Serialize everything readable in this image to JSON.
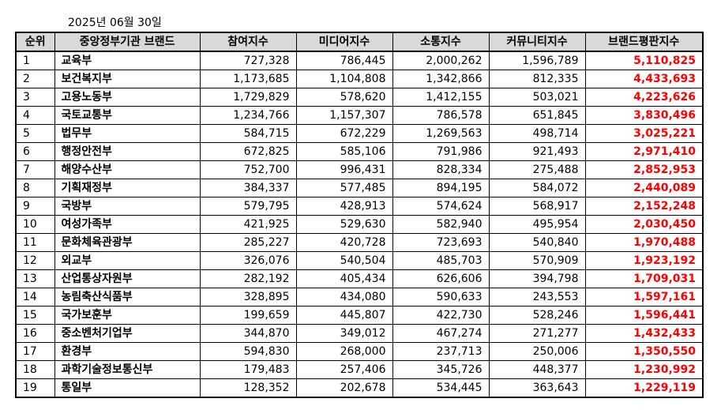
{
  "date": "2025년 06월 30일",
  "headers": [
    "순위",
    "중앙정부기관 브랜드",
    "참여지수",
    "미디어지수",
    "소통지수",
    "커뮤니티지수",
    "브랜드평판지수"
  ],
  "rows": [
    [
      "1",
      "교육부",
      "727,328",
      "786,445",
      "2,000,262",
      "1,596,789",
      "5,110,825"
    ],
    [
      "2",
      "보건복지부",
      "1,173,685",
      "1,104,808",
      "1,342,866",
      "812,335",
      "4,433,693"
    ],
    [
      "3",
      "고용노동부",
      "1,729,829",
      "578,620",
      "1,412,155",
      "503,021",
      "4,223,626"
    ],
    [
      "4",
      "국토교통부",
      "1,234,766",
      "1,157,307",
      "786,578",
      "651,845",
      "3,830,496"
    ],
    [
      "5",
      "법무부",
      "584,715",
      "672,229",
      "1,269,563",
      "498,714",
      "3,025,221"
    ],
    [
      "6",
      "행정안전부",
      "672,825",
      "585,106",
      "791,986",
      "921,493",
      "2,971,410"
    ],
    [
      "7",
      "해양수산부",
      "752,700",
      "996,431",
      "828,334",
      "275,488",
      "2,852,953"
    ],
    [
      "8",
      "기획재정부",
      "384,337",
      "577,485",
      "894,195",
      "584,072",
      "2,440,089"
    ],
    [
      "9",
      "국방부",
      "579,795",
      "428,913",
      "574,624",
      "568,917",
      "2,152,248"
    ],
    [
      "10",
      "여성가족부",
      "421,925",
      "529,630",
      "582,940",
      "495,954",
      "2,030,450"
    ],
    [
      "11",
      "문화체육관광부",
      "285,227",
      "420,728",
      "723,693",
      "540,840",
      "1,970,488"
    ],
    [
      "12",
      "외교부",
      "326,076",
      "540,504",
      "485,703",
      "570,909",
      "1,923,192"
    ],
    [
      "13",
      "산업통상자원부",
      "282,192",
      "405,434",
      "626,606",
      "394,798",
      "1,709,031"
    ],
    [
      "14",
      "농림축산식품부",
      "328,895",
      "434,080",
      "590,633",
      "243,553",
      "1,597,161"
    ],
    [
      "15",
      "국가보훈부",
      "199,659",
      "445,807",
      "422,730",
      "528,246",
      "1,596,441"
    ],
    [
      "16",
      "중소벤처기업부",
      "344,870",
      "349,012",
      "467,274",
      "271,277",
      "1,432,433"
    ],
    [
      "17",
      "환경부",
      "594,830",
      "268,000",
      "237,713",
      "250,006",
      "1,350,550"
    ],
    [
      "18",
      "과학기술정보통신부",
      "179,483",
      "257,406",
      "345,726",
      "448,377",
      "1,230,992"
    ],
    [
      "19",
      "통일부",
      "128,352",
      "202,678",
      "534,445",
      "363,643",
      "1,229,119"
    ]
  ],
  "colors": {
    "header_bg": "#d9d9d9",
    "total_text": "#ff0000",
    "border": "#000000"
  }
}
